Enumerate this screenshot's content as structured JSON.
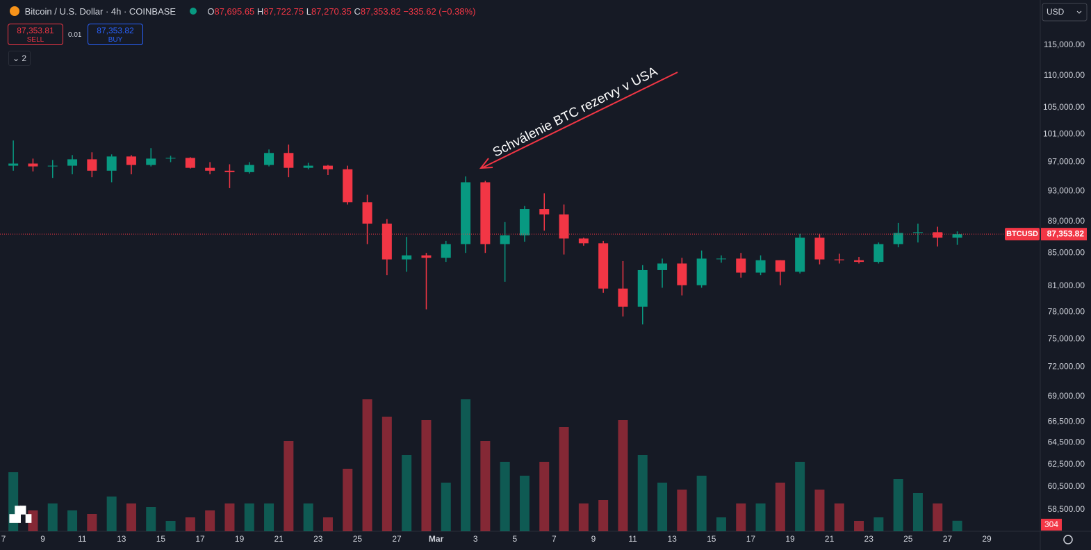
{
  "header": {
    "symbol": "Bitcoin / U.S. Dollar · 4h · COINBASE",
    "open_label": "O",
    "open": "87,695.65",
    "high_label": "H",
    "high": "87,722.75",
    "low_label": "L",
    "low": "87,270.35",
    "close_label": "C",
    "close": "87,353.82",
    "change": "−335.62 (−0.38%)"
  },
  "trade": {
    "sell_price": "87,353.81",
    "sell_label": "SELL",
    "quantity": "0.01",
    "buy_price": "87,353.82",
    "buy_label": "BUY"
  },
  "indicators_count": "2",
  "currency": "USD",
  "chart_data": {
    "type": "candlestick",
    "categories": [
      "7",
      null,
      "9",
      null,
      "11",
      null,
      "13",
      null,
      "15",
      null,
      "17",
      null,
      "19",
      null,
      "21",
      null,
      "23",
      null,
      "25",
      null,
      "27",
      null,
      "Mar",
      null,
      "3",
      null,
      "5",
      null,
      "7",
      null,
      "9",
      null,
      "11",
      null,
      "13",
      null,
      "15",
      null,
      "17",
      null,
      "19",
      null,
      "21",
      null,
      "23",
      null,
      "25",
      null,
      "27",
      null,
      "29"
    ],
    "open": [
      96500,
      96800,
      96400,
      96500,
      97400,
      95800,
      97800,
      96600,
      97500,
      97600,
      96200,
      95800,
      95600,
      96600,
      98300,
      96200,
      96500,
      96000,
      91500,
      88700,
      84200,
      84700,
      84400,
      86100,
      94200,
      86100,
      87200,
      90600,
      89900,
      86800,
      86200,
      80700,
      78600,
      82900,
      83700,
      81100,
      84300,
      84300,
      82600,
      84100,
      82700,
      86900,
      84200,
      84100,
      83900,
      86100,
      87500,
      87600,
      86900,
      null,
      null
    ],
    "high": [
      100100,
      97500,
      97300,
      98000,
      98400,
      98100,
      98000,
      99000,
      97900,
      97700,
      97000,
      96700,
      97000,
      98800,
      99500,
      96900,
      96600,
      96500,
      92500,
      89300,
      87000,
      85000,
      86500,
      95000,
      94400,
      88900,
      91000,
      92700,
      91200,
      86900,
      86500,
      84000,
      83500,
      84300,
      84400,
      85300,
      84700,
      85000,
      84700,
      84100,
      87400,
      87400,
      84900,
      84500,
      86300,
      88800,
      88700,
      88300,
      87700,
      null,
      null
    ],
    "low": [
      95800,
      95700,
      94800,
      95300,
      94900,
      94200,
      95300,
      96400,
      97000,
      96100,
      95300,
      93400,
      95400,
      96400,
      94900,
      96000,
      95200,
      91200,
      86100,
      82300,
      82700,
      78300,
      83900,
      85000,
      85000,
      81500,
      86400,
      87800,
      84800,
      85900,
      80200,
      77500,
      76600,
      80800,
      79900,
      80800,
      83800,
      82000,
      82300,
      81100,
      82500,
      83600,
      83700,
      83700,
      83700,
      85700,
      86300,
      85800,
      86000,
      null,
      null
    ],
    "close": [
      96800,
      96400,
      96500,
      97400,
      95800,
      97800,
      96600,
      97500,
      97600,
      96200,
      95800,
      95600,
      96600,
      98300,
      96200,
      96500,
      96000,
      91500,
      88700,
      84200,
      84700,
      84400,
      86100,
      94200,
      86100,
      87200,
      90600,
      89900,
      86800,
      86200,
      80700,
      78600,
      82900,
      83700,
      81100,
      84300,
      84300,
      82600,
      84100,
      82700,
      86900,
      84200,
      84100,
      83900,
      86100,
      87500,
      87600,
      86900,
      87353.82,
      null,
      null
    ],
    "volume": [
      1700,
      600,
      800,
      600,
      500,
      1000,
      800,
      700,
      300,
      400,
      600,
      800,
      800,
      800,
      2600,
      800,
      400,
      1800,
      3800,
      3300,
      2200,
      3200,
      1400,
      3800,
      2600,
      2000,
      1600,
      2000,
      3000,
      800,
      900,
      3200,
      2200,
      1400,
      1200,
      1600,
      400,
      800,
      800,
      1400,
      2000,
      1200,
      800,
      300,
      400,
      1500,
      1100,
      800,
      304,
      null,
      null
    ],
    "up_color": "#089981",
    "down_color": "#f23645",
    "log_scale": true,
    "ylim": [
      56700,
      122800
    ],
    "yticks": [
      {
        "value": 115000,
        "label": "115,000.00"
      },
      {
        "value": 110000,
        "label": "110,000.00"
      },
      {
        "value": 105000,
        "label": "105,000.00"
      },
      {
        "value": 101000,
        "label": "101,000.00"
      },
      {
        "value": 97000,
        "label": "97,000.00"
      },
      {
        "value": 93000,
        "label": "93,000.00"
      },
      {
        "value": 89000,
        "label": "89,000.00"
      },
      {
        "value": 85000,
        "label": "85,000.00"
      },
      {
        "value": 81000,
        "label": "81,000.00"
      },
      {
        "value": 78000,
        "label": "78,000.00"
      },
      {
        "value": 75000,
        "label": "75,000.00"
      },
      {
        "value": 72000,
        "label": "72,000.00"
      },
      {
        "value": 69000,
        "label": "69,000.00"
      },
      {
        "value": 66500,
        "label": "66,500.00"
      },
      {
        "value": 64500,
        "label": "64,500.00"
      },
      {
        "value": 62500,
        "label": "62,500.00"
      },
      {
        "value": 60500,
        "label": "60,500.00"
      },
      {
        "value": 58500,
        "label": "58,500.00"
      }
    ],
    "volume_ylim": [
      0,
      4000
    ],
    "grid": false,
    "last_price": {
      "value": 87353.82,
      "label": "87,353.82"
    },
    "last_price_tag": "BTCUSD",
    "annotation": "Schválenie BTC rezervy v USA"
  }
}
